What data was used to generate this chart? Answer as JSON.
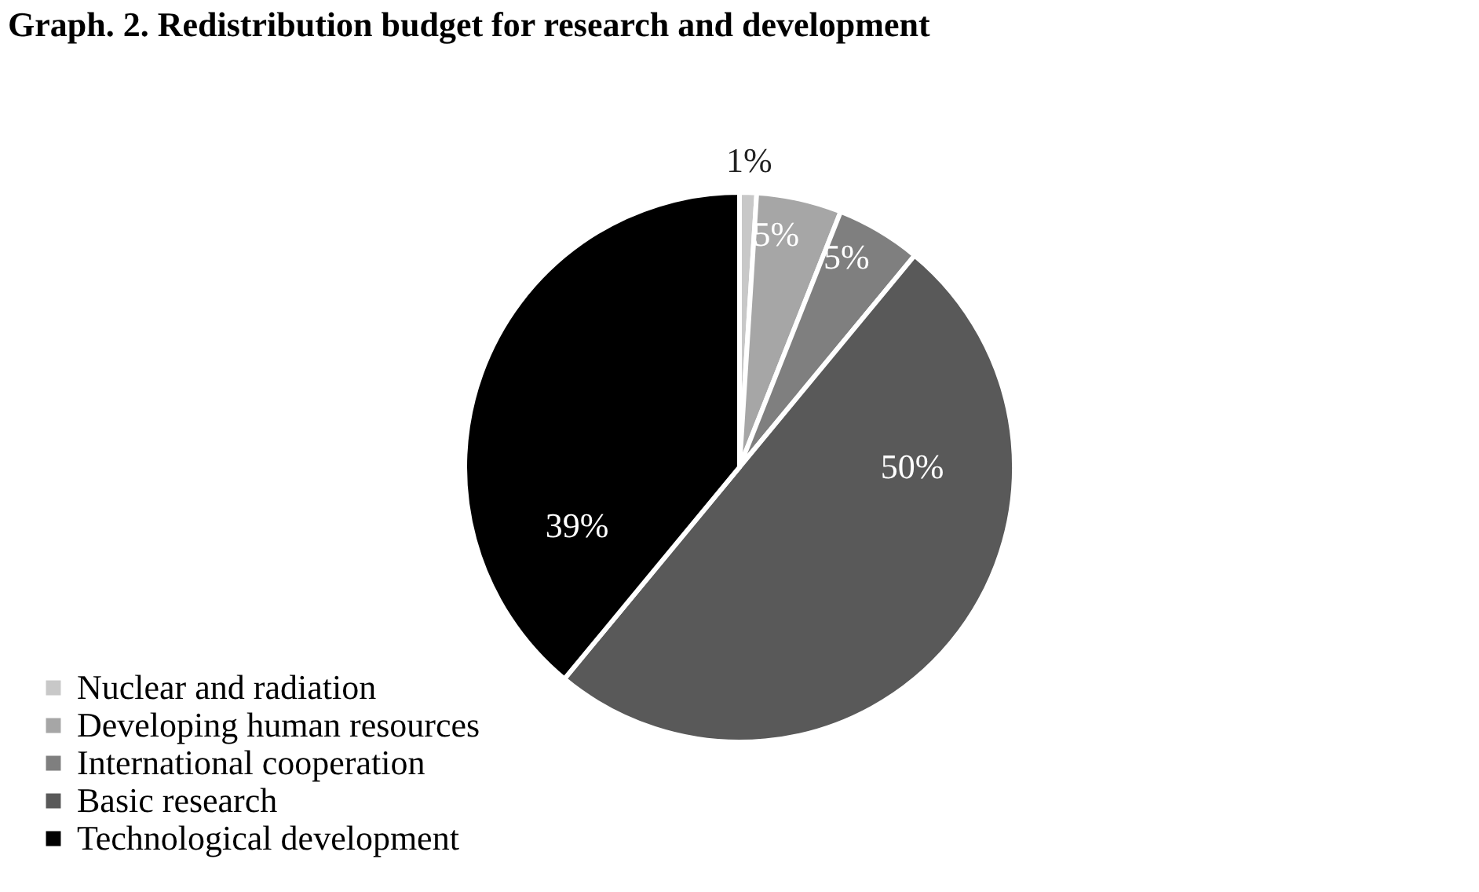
{
  "chart_data": {
    "type": "pie",
    "title": "Graph. 2. Redistribution budget for research and development",
    "categories": [
      "Nuclear and radiation",
      "Developing human resources",
      "International cooperation",
      "Basic research",
      "Technological development"
    ],
    "values": [
      1,
      5,
      5,
      50,
      39
    ],
    "colors": [
      "#c8c8c8",
      "#a6a6a6",
      "#7f7f7f",
      "#595959",
      "#000000"
    ],
    "value_labels": [
      "1%",
      "5%",
      "5%",
      "50%",
      "39%"
    ],
    "legend": "bottom left"
  }
}
